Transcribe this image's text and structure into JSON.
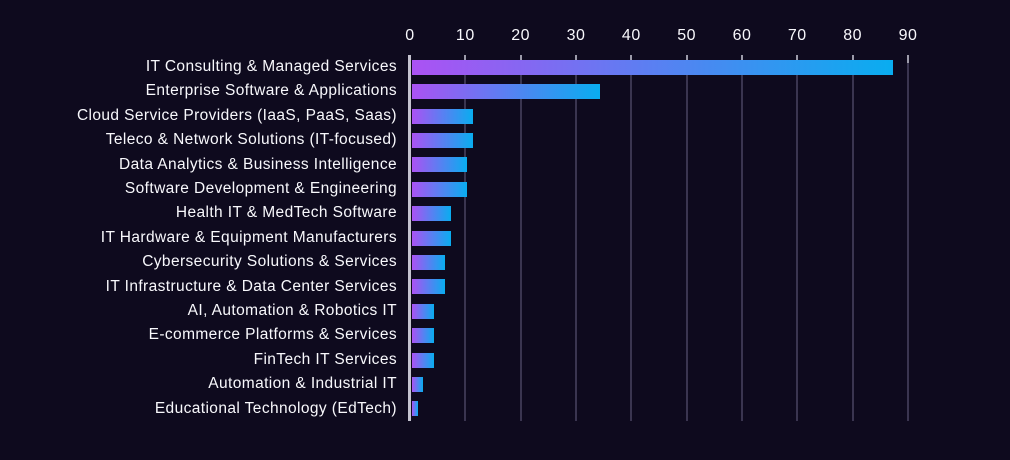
{
  "colors": {
    "background": "#0e0a1e",
    "bar_gradient_start": "#ab52f3",
    "bar_gradient_end": "#09adf0",
    "gridline": "#3a3550",
    "tick_mark": "#9d9cab",
    "axis_line": "#c4c3cf",
    "text": "#f8f8fc"
  },
  "chart_data": {
    "type": "bar",
    "orientation": "horizontal",
    "title": "",
    "xlabel": "",
    "ylabel": "",
    "x_axis_position": "top",
    "grid": true,
    "legend": false,
    "xlim": [
      0,
      104
    ],
    "x_ticks": [
      0,
      10,
      20,
      30,
      40,
      50,
      60,
      70,
      80,
      90
    ],
    "categories": [
      "IT Consulting & Managed Services",
      "Enterprise Software & Applications",
      "Cloud Service Providers (IaaS, PaaS, Saas)",
      "Teleco & Network Solutions (IT-focused)",
      "Data Analytics & Business Intelligence",
      "Software Development & Engineering",
      "Health IT & MedTech Software",
      "IT Hardware & Equipment Manufacturers",
      "Cybersecurity Solutions & Services",
      "IT Infrastructure & Data Center Services",
      "AI, Automation & Robotics IT",
      "E-commerce Platforms & Services",
      "FinTech IT Services",
      "Automation & Industrial IT",
      "Educational Technology (EdTech)"
    ],
    "values": [
      87,
      34,
      11,
      11,
      10,
      10,
      7,
      7,
      6,
      6,
      4,
      4,
      4,
      2,
      1
    ]
  }
}
